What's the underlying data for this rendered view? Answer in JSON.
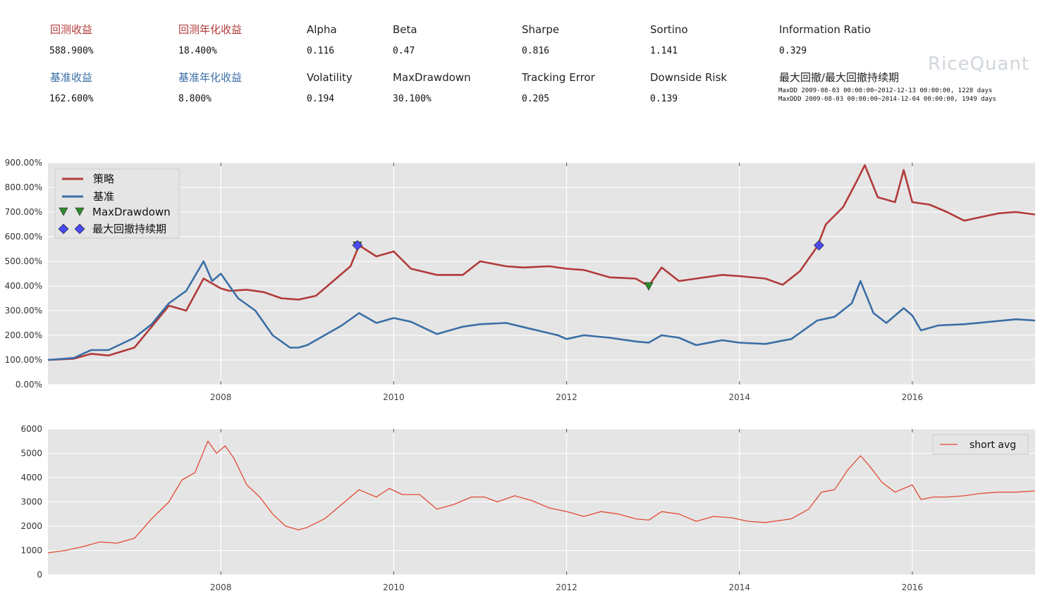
{
  "stats": {
    "row1": [
      {
        "label": "回测收益",
        "value": "588.900%",
        "color": "red"
      },
      {
        "label": "回测年化收益",
        "value": "18.400%",
        "color": "red"
      },
      {
        "label": "Alpha",
        "value": "0.116",
        "color": "black"
      },
      {
        "label": "Beta",
        "value": "0.47",
        "color": "black"
      },
      {
        "label": "Sharpe",
        "value": "0.816",
        "color": "black"
      },
      {
        "label": "Sortino",
        "value": "1.141",
        "color": "black"
      },
      {
        "label": "Information Ratio",
        "value": "0.329",
        "color": "black"
      }
    ],
    "row2": [
      {
        "label": "基准收益",
        "value": "162.600%",
        "color": "blue"
      },
      {
        "label": "基准年化收益",
        "value": "8.800%",
        "color": "blue"
      },
      {
        "label": "Volatility",
        "value": "0.194",
        "color": "black"
      },
      {
        "label": "MaxDrawdown",
        "value": "30.100%",
        "color": "black"
      },
      {
        "label": "Tracking Error",
        "value": "0.205",
        "color": "black"
      },
      {
        "label": "Downside Risk",
        "value": "0.139",
        "color": "black"
      }
    ],
    "maxdd_title": "最大回撤/最大回撤持续期",
    "maxdd_line": "MaxDD  2009-08-03 00:00:00~2012-12-13 00:00:00, 1228 days",
    "maxddd_line": "MaxDDD 2009-08-03 00:00:00~2014-12-04 00:00:00, 1949 days",
    "logo": "RiceQuant"
  },
  "colors": {
    "strategy": "#b23a3a",
    "benchmark": "#3a6ea5",
    "maxdd_marker": "#2e8b2e",
    "duration_marker": "#4a4af0",
    "short_avg": "#e24a33",
    "plot_bg": "#e5e5e5",
    "grid": "#ffffff"
  },
  "chart_data": [
    {
      "type": "line",
      "ylim": [
        0,
        900
      ],
      "yticks": [
        "0.00%",
        "100.00%",
        "200.00%",
        "300.00%",
        "400.00%",
        "500.00%",
        "600.00%",
        "700.00%",
        "800.00%",
        "900.00%"
      ],
      "xlim": [
        2006.0,
        2017.42
      ],
      "xticks": [
        "2008",
        "2010",
        "2012",
        "2014",
        "2016"
      ],
      "grid": true,
      "legend_position": "top-left",
      "legend": [
        "策略",
        "基准",
        "MaxDrawdown",
        "最大回撤持续期"
      ],
      "series": [
        {
          "name": "策略",
          "x": [
            2006.0,
            2006.3,
            2006.5,
            2006.7,
            2007.0,
            2007.2,
            2007.4,
            2007.6,
            2007.8,
            2008.0,
            2008.1,
            2008.3,
            2008.5,
            2008.7,
            2008.9,
            2009.1,
            2009.3,
            2009.5,
            2009.6,
            2009.8,
            2010.0,
            2010.2,
            2010.5,
            2010.8,
            2011.0,
            2011.3,
            2011.5,
            2011.8,
            2012.0,
            2012.2,
            2012.5,
            2012.8,
            2012.95,
            2013.1,
            2013.3,
            2013.5,
            2013.8,
            2014.0,
            2014.3,
            2014.5,
            2014.7,
            2014.9,
            2015.0,
            2015.2,
            2015.35,
            2015.45,
            2015.6,
            2015.8,
            2015.9,
            2016.0,
            2016.2,
            2016.4,
            2016.6,
            2016.8,
            2017.0,
            2017.2,
            2017.42
          ],
          "values": [
            100,
            105,
            125,
            118,
            150,
            235,
            320,
            300,
            430,
            390,
            380,
            385,
            375,
            350,
            345,
            360,
            420,
            480,
            565,
            520,
            540,
            470,
            445,
            445,
            500,
            480,
            475,
            480,
            470,
            465,
            435,
            430,
            400,
            475,
            420,
            430,
            445,
            440,
            430,
            405,
            460,
            560,
            650,
            720,
            820,
            890,
            760,
            740,
            870,
            740,
            730,
            700,
            665,
            680,
            695,
            700,
            690
          ]
        },
        {
          "name": "基准",
          "x": [
            2006.0,
            2006.3,
            2006.5,
            2006.7,
            2007.0,
            2007.2,
            2007.4,
            2007.6,
            2007.8,
            2007.9,
            2008.0,
            2008.2,
            2008.4,
            2008.6,
            2008.8,
            2008.9,
            2009.0,
            2009.2,
            2009.4,
            2009.6,
            2009.8,
            2010.0,
            2010.2,
            2010.5,
            2010.8,
            2011.0,
            2011.3,
            2011.6,
            2011.9,
            2012.0,
            2012.2,
            2012.5,
            2012.8,
            2012.95,
            2013.1,
            2013.3,
            2013.5,
            2013.8,
            2014.0,
            2014.3,
            2014.6,
            2014.9,
            2015.1,
            2015.3,
            2015.4,
            2015.55,
            2015.7,
            2015.9,
            2016.0,
            2016.1,
            2016.3,
            2016.6,
            2016.9,
            2017.2,
            2017.42
          ],
          "values": [
            100,
            108,
            140,
            140,
            190,
            245,
            330,
            380,
            500,
            420,
            450,
            350,
            300,
            200,
            150,
            150,
            160,
            200,
            240,
            290,
            250,
            270,
            255,
            205,
            235,
            245,
            250,
            225,
            200,
            185,
            200,
            190,
            175,
            170,
            200,
            190,
            160,
            180,
            170,
            165,
            185,
            260,
            275,
            330,
            420,
            290,
            250,
            310,
            280,
            220,
            240,
            245,
            255,
            265,
            260
          ]
        }
      ],
      "markers": [
        {
          "name": "MaxDrawdown",
          "points": [
            {
              "x": 2009.58,
              "y": 565
            },
            {
              "x": 2012.95,
              "y": 400
            }
          ]
        },
        {
          "name": "最大回撤持续期",
          "points": [
            {
              "x": 2009.58,
              "y": 565
            },
            {
              "x": 2014.92,
              "y": 565
            }
          ]
        }
      ]
    },
    {
      "type": "line",
      "ylim": [
        0,
        6000
      ],
      "yticks": [
        "0",
        "1000",
        "2000",
        "3000",
        "4000",
        "5000",
        "6000"
      ],
      "xlim": [
        2006.0,
        2017.42
      ],
      "xticks": [
        "2008",
        "2010",
        "2012",
        "2014",
        "2016"
      ],
      "grid": true,
      "legend_position": "top-right",
      "legend": [
        "short avg"
      ],
      "series": [
        {
          "name": "short avg",
          "x": [
            2006.0,
            2006.2,
            2006.4,
            2006.6,
            2006.8,
            2007.0,
            2007.2,
            2007.4,
            2007.55,
            2007.7,
            2007.85,
            2007.95,
            2008.05,
            2008.15,
            2008.3,
            2008.45,
            2008.6,
            2008.75,
            2008.9,
            2009.0,
            2009.2,
            2009.4,
            2009.6,
            2009.8,
            2009.95,
            2010.1,
            2010.3,
            2010.5,
            2010.7,
            2010.9,
            2011.05,
            2011.2,
            2011.4,
            2011.6,
            2011.8,
            2012.0,
            2012.2,
            2012.4,
            2012.6,
            2012.8,
            2012.95,
            2013.1,
            2013.3,
            2013.5,
            2013.7,
            2013.9,
            2014.1,
            2014.3,
            2014.6,
            2014.8,
            2014.95,
            2015.1,
            2015.25,
            2015.4,
            2015.5,
            2015.65,
            2015.8,
            2016.0,
            2016.1,
            2016.25,
            2016.4,
            2016.6,
            2016.8,
            2017.0,
            2017.2,
            2017.42
          ],
          "values": [
            900,
            1000,
            1150,
            1350,
            1300,
            1500,
            2300,
            3000,
            3900,
            4200,
            5500,
            5000,
            5300,
            4800,
            3700,
            3200,
            2500,
            2000,
            1850,
            1950,
            2300,
            2900,
            3500,
            3200,
            3550,
            3300,
            3300,
            2700,
            2900,
            3200,
            3200,
            3000,
            3250,
            3050,
            2750,
            2600,
            2400,
            2600,
            2500,
            2300,
            2250,
            2600,
            2500,
            2200,
            2400,
            2350,
            2200,
            2150,
            2300,
            2700,
            3400,
            3500,
            4300,
            4900,
            4500,
            3800,
            3400,
            3700,
            3100,
            3200,
            3200,
            3250,
            3350,
            3400,
            3400,
            3450
          ]
        }
      ]
    }
  ]
}
